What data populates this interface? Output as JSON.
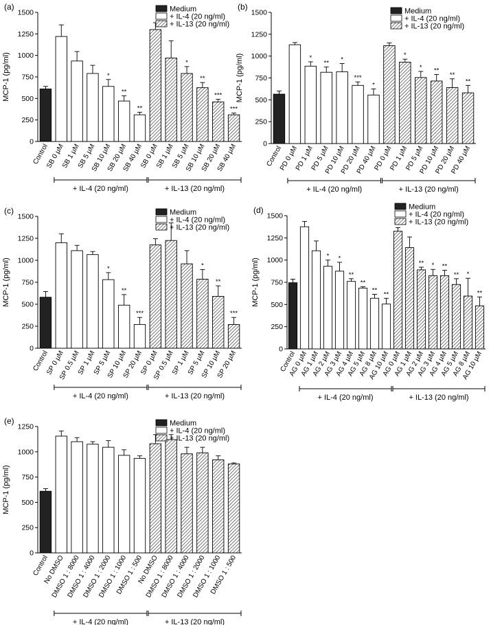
{
  "legend_labels": [
    "Medium",
    "+ IL-4 (20 ng/ml)",
    "+ IL-13 (20 ng/ml)"
  ],
  "chart_data": [
    {
      "type": "bar",
      "panel_label": "(a)",
      "ylabel": "MCP-1 (pg/ml)",
      "ylim": [
        0,
        1500
      ],
      "yticks": [
        0,
        250,
        500,
        750,
        1000,
        1250,
        1500
      ],
      "categories": [
        "Control",
        "SB 0 µM",
        "SB 1 µM",
        "SB 5 µM",
        "SB 10 µM",
        "SB 20 µM",
        "SB 40 µM",
        "SB 0 µM",
        "SB 1 µM",
        "SB 5 µM",
        "SB 10 µM",
        "SB 20 µM",
        "SB 40 µM"
      ],
      "values": [
        610,
        1220,
        935,
        790,
        640,
        470,
        310,
        1300,
        970,
        790,
        625,
        460,
        310
      ],
      "errors": [
        30,
        135,
        110,
        95,
        80,
        60,
        30,
        80,
        200,
        80,
        60,
        30,
        20
      ],
      "groups": [
        "medium",
        "il4",
        "il4",
        "il4",
        "il4",
        "il4",
        "il4",
        "il13",
        "il13",
        "il13",
        "il13",
        "il13",
        "il13"
      ],
      "significance": [
        "",
        "",
        "",
        "",
        "*",
        "**",
        "**",
        "",
        "",
        "*",
        "**",
        "***",
        "***"
      ],
      "brackets": [
        {
          "label": "+ IL-4 (20 ng/ml)",
          "from": 1,
          "to": 6
        },
        {
          "label": "+ IL-13 (20 ng/ml)",
          "from": 7,
          "to": 12
        }
      ]
    },
    {
      "type": "bar",
      "panel_label": "(b)",
      "ylabel": "MCP-1 (pg/ml)",
      "ylim": [
        0,
        1500
      ],
      "yticks": [
        0,
        250,
        500,
        750,
        1000,
        1250,
        1500
      ],
      "categories": [
        "Control",
        "PD 0 µM",
        "PD 1 µM",
        "PD 5 µM",
        "PD 10 µM",
        "PD 20 µM",
        "PD 40 µM",
        "PD 0 µM",
        "PD 1 µM",
        "PD 5 µM",
        "PD 10 µM",
        "PD 20 µM",
        "PD 40 µM"
      ],
      "values": [
        565,
        1130,
        885,
        815,
        820,
        665,
        555,
        1120,
        930,
        755,
        715,
        640,
        580
      ],
      "errors": [
        35,
        25,
        50,
        60,
        95,
        40,
        70,
        30,
        35,
        70,
        75,
        100,
        85
      ],
      "groups": [
        "medium",
        "il4",
        "il4",
        "il4",
        "il4",
        "il4",
        "il4",
        "il13",
        "il13",
        "il13",
        "il13",
        "il13",
        "il13"
      ],
      "significance": [
        "",
        "",
        "*",
        "**",
        "*",
        "***",
        "*",
        "",
        "*",
        "*",
        "**",
        "**",
        "**"
      ],
      "brackets": [
        {
          "label": "+ IL-4 (20 ng/ml)",
          "from": 1,
          "to": 6
        },
        {
          "label": "+ IL-13 (20 ng/ml)",
          "from": 7,
          "to": 12
        }
      ]
    },
    {
      "type": "bar",
      "panel_label": "(c)",
      "ylabel": "MCP-1 (pg/ml)",
      "ylim": [
        0,
        1500
      ],
      "yticks": [
        0,
        250,
        500,
        750,
        1000,
        1250,
        1500
      ],
      "categories": [
        "Control",
        "SP 0 µM",
        "SP 0.5 µM",
        "SP 1 µM",
        "SP 5 µM",
        "SP 10 µM",
        "SP 20 µM",
        "SP 0 µM",
        "SP 0.5 µM",
        "SP 1 µM",
        "SP 5 µM",
        "SP 10 µM",
        "SP 20 µM"
      ],
      "values": [
        580,
        1200,
        1110,
        1065,
        780,
        490,
        270,
        1175,
        1225,
        960,
        785,
        590,
        270
      ],
      "errors": [
        65,
        100,
        60,
        35,
        80,
        120,
        80,
        70,
        200,
        150,
        110,
        120,
        80
      ],
      "groups": [
        "medium",
        "il4",
        "il4",
        "il4",
        "il4",
        "il4",
        "il4",
        "il13",
        "il13",
        "il13",
        "il13",
        "il13",
        "il13"
      ],
      "significance": [
        "",
        "",
        "",
        "",
        "*",
        "**",
        "***",
        "",
        "",
        "",
        "*",
        "**",
        "***"
      ],
      "brackets": [
        {
          "label": "+ IL-4 (20 ng/ml)",
          "from": 1,
          "to": 6
        },
        {
          "label": "+ IL-13 (20 ng/ml)",
          "from": 7,
          "to": 12
        }
      ]
    },
    {
      "type": "bar",
      "panel_label": "(d)",
      "ylabel": "MCP-1 (pg/ml)",
      "ylim": [
        0,
        1500
      ],
      "yticks": [
        0,
        250,
        500,
        750,
        1000,
        1250,
        1500
      ],
      "categories": [
        "Control",
        "AG 0 µM",
        "AG 1 µM",
        "AG 2 µM",
        "AG 3 µM",
        "AG 4 µM",
        "AG 5 µM",
        "AG 8 µM",
        "AG 10 µM",
        "AG 0 µM",
        "AG 1 µM",
        "AG 2 µM",
        "AG 3 µM",
        "AG 4 µM",
        "AG 5 µM",
        "AG 8 µM",
        "AG 10 µM"
      ],
      "values": [
        745,
        1375,
        1105,
        930,
        875,
        760,
        685,
        570,
        505,
        1325,
        1140,
        890,
        825,
        825,
        725,
        595,
        485
      ],
      "errors": [
        40,
        60,
        110,
        70,
        100,
        30,
        15,
        45,
        65,
        40,
        120,
        30,
        70,
        60,
        65,
        200,
        100
      ],
      "groups": [
        "medium",
        "il4",
        "il4",
        "il4",
        "il4",
        "il4",
        "il4",
        "il4",
        "il4",
        "il13",
        "il13",
        "il13",
        "il13",
        "il13",
        "il13",
        "il13",
        "il13"
      ],
      "significance": [
        "",
        "",
        "",
        "*",
        "*",
        "**",
        "**",
        "**",
        "**",
        "",
        "",
        "**",
        "*",
        "**",
        "**",
        "*",
        "**"
      ],
      "brackets": [
        {
          "label": "+ IL-4 (20 ng/ml)",
          "from": 1,
          "to": 8
        },
        {
          "label": "+ IL-13 (20 ng/ml)",
          "from": 9,
          "to": 16
        }
      ]
    },
    {
      "type": "bar",
      "panel_label": "(e)",
      "ylabel": "MCP-1 (pg/ml)",
      "ylim": [
        0,
        1250
      ],
      "yticks": [
        0,
        250,
        500,
        750,
        1000,
        1250
      ],
      "categories": [
        "Control",
        "No DMSO",
        "DMSO 1 : 8000",
        "DMSO 1 : 4000",
        "DMSO 1 : 2000",
        "DMSO 1 : 1000",
        "DMSO 1 : 500",
        "No DMSO",
        "DMSO 1 : 8000",
        "DMSO 1 : 4000",
        "DMSO 1 : 2000",
        "DMSO 1 : 1000",
        "DMSO 1 : 500"
      ],
      "values": [
        610,
        1155,
        1100,
        1075,
        1045,
        965,
        935,
        1080,
        1120,
        980,
        990,
        920,
        880
      ],
      "errors": [
        25,
        50,
        40,
        25,
        65,
        55,
        25,
        90,
        50,
        65,
        55,
        40,
        10
      ],
      "groups": [
        "medium",
        "il4",
        "il4",
        "il4",
        "il4",
        "il4",
        "il4",
        "il13",
        "il13",
        "il13",
        "il13",
        "il13",
        "il13"
      ],
      "significance": [
        "",
        "",
        "",
        "",
        "",
        "",
        "",
        "",
        "",
        "",
        "",
        "",
        ""
      ],
      "brackets": [
        {
          "label": "+ IL-4 (20 ng/ml)",
          "from": 1,
          "to": 6
        },
        {
          "label": "+ IL-13 (20 ng/ml)",
          "from": 7,
          "to": 12
        }
      ]
    }
  ]
}
